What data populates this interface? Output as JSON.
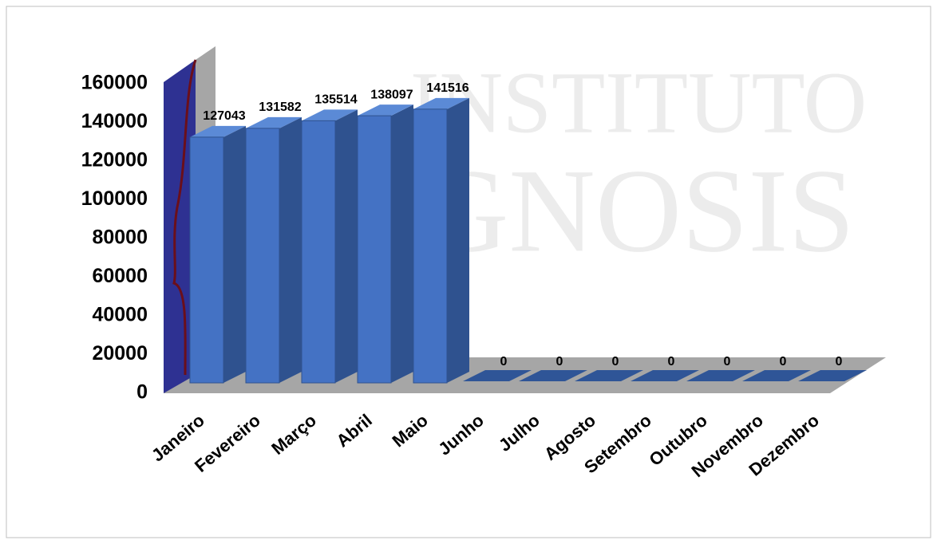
{
  "chart_data": {
    "type": "bar3d",
    "watermark": [
      "INSTITUTO",
      "GNOSIS"
    ],
    "categories": [
      "Janeiro",
      "Fevereiro",
      "Março",
      "Abril",
      "Maio",
      "Junho",
      "Julho",
      "Agosto",
      "Setembro",
      "Outubro",
      "Novembro",
      "Dezembro"
    ],
    "values": [
      127043,
      131582,
      135514,
      138097,
      141516,
      0,
      0,
      0,
      0,
      0,
      0,
      0
    ],
    "color": "#4472c4",
    "ylim": [
      0,
      160000
    ],
    "yticks": [
      0,
      20000,
      40000,
      60000,
      80000,
      100000,
      120000,
      140000,
      160000
    ],
    "grid": false
  }
}
